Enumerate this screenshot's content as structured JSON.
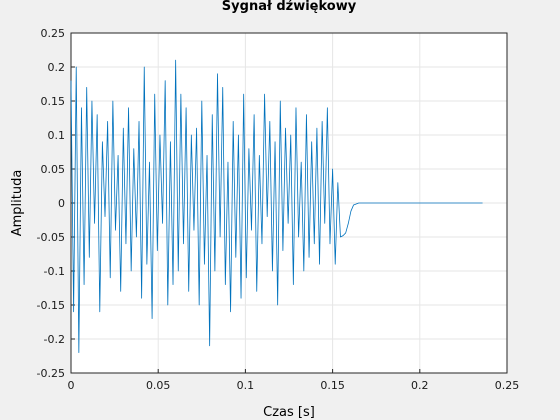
{
  "chart_data": {
    "type": "line",
    "title": "Sygnał dźwiękowy",
    "xlabel": "Czas [s]",
    "ylabel": "Amplituda",
    "xlim": [
      0,
      0.25
    ],
    "ylim": [
      -0.25,
      0.25
    ],
    "xticks": [
      0,
      0.05,
      0.1,
      0.15,
      0.2,
      0.25
    ],
    "xtick_labels": [
      "0",
      "0.05",
      "0.1",
      "0.15",
      "0.2",
      "0.25"
    ],
    "yticks": [
      -0.25,
      -0.2,
      -0.15,
      -0.1,
      -0.05,
      0,
      0.05,
      0.1,
      0.15,
      0.2,
      0.25
    ],
    "ytick_labels": [
      "-0.25",
      "-0.2",
      "-0.15",
      "-0.1",
      "-0.05",
      "0",
      "0.05",
      "0.1",
      "0.15",
      "0.2",
      "0.25"
    ],
    "grid": true,
    "legend": "none",
    "series": [
      {
        "color": "#0072bd",
        "x": [
          0,
          0.0015,
          0.003,
          0.0045,
          0.006,
          0.0075,
          0.009,
          0.0105,
          0.012,
          0.0135,
          0.015,
          0.0165,
          0.018,
          0.0195,
          0.021,
          0.0225,
          0.024,
          0.0255,
          0.027,
          0.0285,
          0.03,
          0.0315,
          0.033,
          0.0345,
          0.036,
          0.0375,
          0.039,
          0.0405,
          0.042,
          0.0435,
          0.045,
          0.0465,
          0.048,
          0.0495,
          0.051,
          0.0525,
          0.054,
          0.0555,
          0.057,
          0.0585,
          0.06,
          0.0615,
          0.063,
          0.0645,
          0.066,
          0.0675,
          0.069,
          0.0705,
          0.072,
          0.0735,
          0.075,
          0.0765,
          0.078,
          0.0795,
          0.081,
          0.0825,
          0.084,
          0.0855,
          0.087,
          0.0885,
          0.09,
          0.0915,
          0.093,
          0.0945,
          0.096,
          0.0975,
          0.099,
          0.1005,
          0.102,
          0.1035,
          0.105,
          0.1065,
          0.108,
          0.1095,
          0.111,
          0.1125,
          0.114,
          0.1155,
          0.117,
          0.1185,
          0.12,
          0.1215,
          0.123,
          0.1245,
          0.126,
          0.1275,
          0.129,
          0.1305,
          0.132,
          0.1335,
          0.135,
          0.1365,
          0.138,
          0.1395,
          0.141,
          0.1425,
          0.144,
          0.1455,
          0.147,
          0.1485,
          0.15,
          0.1515,
          0.153,
          0.1545,
          0.156,
          0.1575,
          0.159,
          0.1605,
          0.162,
          0.165,
          0.17,
          0.18,
          0.2,
          0.22,
          0.236
        ],
        "y": [
          0.18,
          -0.16,
          0.2,
          -0.22,
          0.14,
          -0.12,
          0.17,
          -0.08,
          0.15,
          -0.03,
          0.13,
          -0.16,
          0.09,
          -0.02,
          0.12,
          -0.11,
          0.15,
          -0.04,
          0.07,
          -0.13,
          0.11,
          -0.06,
          0.14,
          -0.1,
          0.08,
          -0.05,
          0.12,
          -0.14,
          0.2,
          -0.09,
          0.06,
          -0.17,
          0.16,
          -0.07,
          0.1,
          -0.03,
          0.18,
          -0.15,
          0.09,
          -0.12,
          0.21,
          -0.1,
          0.16,
          -0.06,
          0.14,
          -0.13,
          0.1,
          -0.04,
          0.11,
          -0.15,
          0.15,
          -0.09,
          0.07,
          -0.21,
          0.13,
          -0.1,
          0.19,
          -0.05,
          0.17,
          -0.12,
          0.06,
          -0.16,
          0.12,
          -0.08,
          0.1,
          -0.14,
          0.16,
          -0.11,
          0.08,
          -0.04,
          0.13,
          -0.13,
          0.07,
          -0.06,
          0.16,
          -0.02,
          0.12,
          -0.1,
          0.09,
          -0.15,
          0.15,
          -0.07,
          0.11,
          -0.03,
          0.1,
          -0.12,
          0.14,
          -0.05,
          0.06,
          -0.1,
          0.13,
          -0.08,
          0.09,
          -0.06,
          0.11,
          -0.09,
          0.12,
          -0.03,
          0.14,
          -0.06,
          0.05,
          -0.09,
          0.03,
          -0.05,
          -0.048,
          -0.044,
          -0.03,
          -0.012,
          -0.003,
          0,
          0,
          0,
          0,
          0,
          0
        ]
      }
    ]
  }
}
